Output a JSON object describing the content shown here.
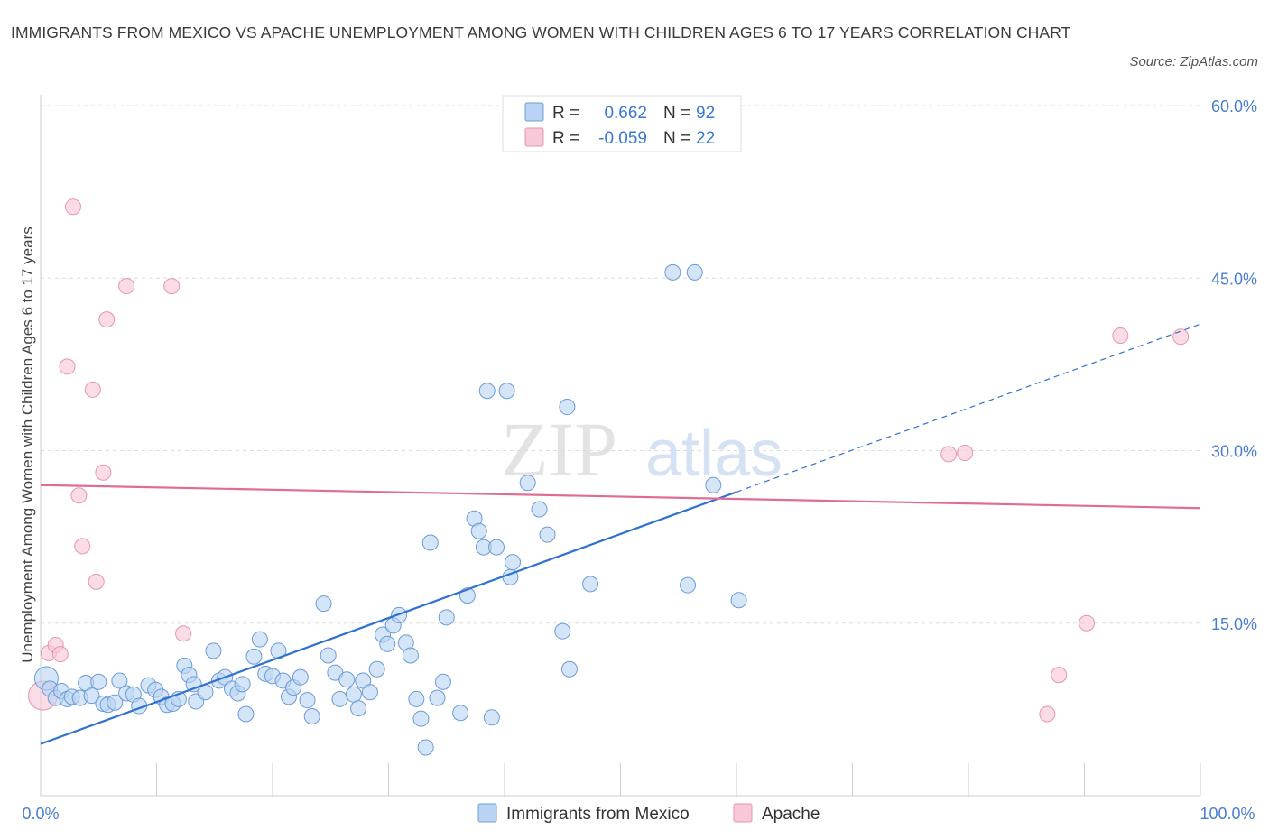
{
  "title": "IMMIGRANTS FROM MEXICO VS APACHE UNEMPLOYMENT AMONG WOMEN WITH CHILDREN AGES 6 TO 17 YEARS CORRELATION CHART",
  "source": "Source: ZipAtlas.com",
  "watermark": {
    "zip": "ZIP",
    "atlas": "atlas"
  },
  "colors": {
    "blue": "#6c9bd8",
    "blue_fill": "#b9d3f3",
    "blue_line": "#2f72cf",
    "pink": "#e994b0",
    "pink_fill": "#f7c9d8",
    "pink_line": "#e06c95",
    "tick": "#4a7fd0"
  },
  "legend": {
    "rows": [
      {
        "r_label": "R =",
        "r_value": "0.662",
        "n_label": "N =",
        "n_value": "92"
      },
      {
        "r_label": "R =",
        "r_value": "-0.059",
        "n_label": "N =",
        "n_value": "22"
      }
    ]
  },
  "chart_data": {
    "type": "scatter",
    "title": "IMMIGRANTS FROM MEXICO VS APACHE UNEMPLOYMENT AMONG WOMEN WITH CHILDREN AGES 6 TO 17 YEARS CORRELATION CHART",
    "xlabel": "",
    "ylabel": "Unemployment Among Women with Children Ages 6 to 17 years",
    "xlim": [
      0,
      100
    ],
    "ylim": [
      0,
      60
    ],
    "x_tick_labels": [
      "0.0%",
      "100.0%"
    ],
    "y_ticks": [
      15,
      30,
      45,
      60
    ],
    "y_tick_labels": [
      "15.0%",
      "30.0%",
      "45.0%",
      "60.0%"
    ],
    "grid": "horizontal dashed",
    "legend_position": "top-center",
    "series": [
      {
        "name": "Immigrants from Mexico",
        "color": "#6c9bd8",
        "trend": {
          "x0": 0,
          "y0": 4.5,
          "x1": 100,
          "y1": 41,
          "solid_until_x": 60
        },
        "points": [
          [
            0.5,
            10.2
          ],
          [
            0.8,
            9.3
          ],
          [
            1.3,
            8.5
          ],
          [
            1.8,
            9.1
          ],
          [
            2.3,
            8.4
          ],
          [
            2.7,
            8.6
          ],
          [
            3.4,
            8.5
          ],
          [
            3.9,
            9.8
          ],
          [
            4.4,
            8.7
          ],
          [
            5.0,
            9.9
          ],
          [
            5.4,
            8.0
          ],
          [
            5.8,
            7.9
          ],
          [
            6.4,
            8.1
          ],
          [
            6.8,
            10.0
          ],
          [
            7.4,
            8.9
          ],
          [
            8.0,
            8.8
          ],
          [
            8.5,
            7.8
          ],
          [
            9.3,
            9.6
          ],
          [
            9.9,
            9.2
          ],
          [
            10.4,
            8.6
          ],
          [
            10.9,
            7.9
          ],
          [
            11.4,
            8.0
          ],
          [
            11.9,
            8.4
          ],
          [
            12.4,
            11.3
          ],
          [
            12.8,
            10.5
          ],
          [
            13.2,
            9.7
          ],
          [
            13.4,
            8.2
          ],
          [
            14.2,
            9.0
          ],
          [
            14.9,
            12.6
          ],
          [
            15.4,
            10.0
          ],
          [
            15.9,
            10.3
          ],
          [
            16.5,
            9.3
          ],
          [
            17.0,
            8.9
          ],
          [
            17.4,
            9.7
          ],
          [
            17.7,
            7.1
          ],
          [
            18.4,
            12.1
          ],
          [
            18.9,
            13.6
          ],
          [
            19.4,
            10.6
          ],
          [
            20.0,
            10.4
          ],
          [
            20.5,
            12.6
          ],
          [
            20.9,
            10.0
          ],
          [
            21.4,
            8.6
          ],
          [
            21.8,
            9.4
          ],
          [
            22.4,
            10.3
          ],
          [
            23.0,
            8.3
          ],
          [
            23.4,
            6.9
          ],
          [
            24.4,
            16.7
          ],
          [
            24.8,
            12.2
          ],
          [
            25.4,
            10.7
          ],
          [
            25.8,
            8.4
          ],
          [
            26.4,
            10.1
          ],
          [
            27.0,
            8.8
          ],
          [
            27.4,
            7.6
          ],
          [
            27.8,
            10.0
          ],
          [
            28.4,
            9.0
          ],
          [
            29.0,
            11.0
          ],
          [
            29.5,
            14.0
          ],
          [
            29.9,
            13.2
          ],
          [
            30.4,
            14.8
          ],
          [
            30.9,
            15.7
          ],
          [
            31.5,
            13.3
          ],
          [
            31.9,
            12.2
          ],
          [
            32.4,
            8.4
          ],
          [
            32.8,
            6.7
          ],
          [
            33.2,
            4.2
          ],
          [
            33.6,
            22.0
          ],
          [
            34.2,
            8.5
          ],
          [
            34.7,
            9.9
          ],
          [
            35.0,
            15.5
          ],
          [
            36.2,
            7.2
          ],
          [
            36.8,
            17.4
          ],
          [
            37.4,
            24.1
          ],
          [
            37.8,
            23.0
          ],
          [
            38.2,
            21.6
          ],
          [
            38.5,
            35.2
          ],
          [
            38.9,
            6.8
          ],
          [
            39.3,
            21.6
          ],
          [
            40.2,
            35.2
          ],
          [
            40.5,
            19.0
          ],
          [
            40.7,
            20.3
          ],
          [
            42.0,
            27.2
          ],
          [
            43.0,
            24.9
          ],
          [
            43.7,
            22.7
          ],
          [
            45.0,
            14.3
          ],
          [
            45.4,
            33.8
          ],
          [
            45.6,
            11.0
          ],
          [
            47.4,
            18.4
          ],
          [
            54.5,
            45.5
          ],
          [
            55.8,
            18.3
          ],
          [
            56.4,
            45.5
          ],
          [
            58.0,
            27.0
          ],
          [
            60.2,
            17.0
          ]
        ]
      },
      {
        "name": "Apache",
        "color": "#e994b0",
        "trend": {
          "x0": 0,
          "y0": 27,
          "x1": 100,
          "y1": 25
        },
        "points": [
          [
            0.2,
            8.7
          ],
          [
            0.7,
            12.4
          ],
          [
            1.3,
            13.1
          ],
          [
            1.7,
            12.3
          ],
          [
            2.3,
            37.3
          ],
          [
            2.8,
            51.2
          ],
          [
            3.3,
            26.1
          ],
          [
            3.6,
            21.7
          ],
          [
            4.5,
            35.3
          ],
          [
            4.8,
            18.6
          ],
          [
            5.4,
            28.1
          ],
          [
            5.7,
            41.4
          ],
          [
            7.4,
            44.3
          ],
          [
            11.3,
            44.3
          ],
          [
            12.3,
            14.1
          ],
          [
            78.3,
            29.7
          ],
          [
            79.7,
            29.8
          ],
          [
            86.8,
            7.1
          ],
          [
            87.8,
            10.5
          ],
          [
            90.2,
            15.0
          ],
          [
            93.1,
            40.0
          ],
          [
            98.3,
            39.9
          ]
        ]
      }
    ]
  },
  "bottom_legend": [
    "Immigrants from Mexico",
    "Apache"
  ]
}
